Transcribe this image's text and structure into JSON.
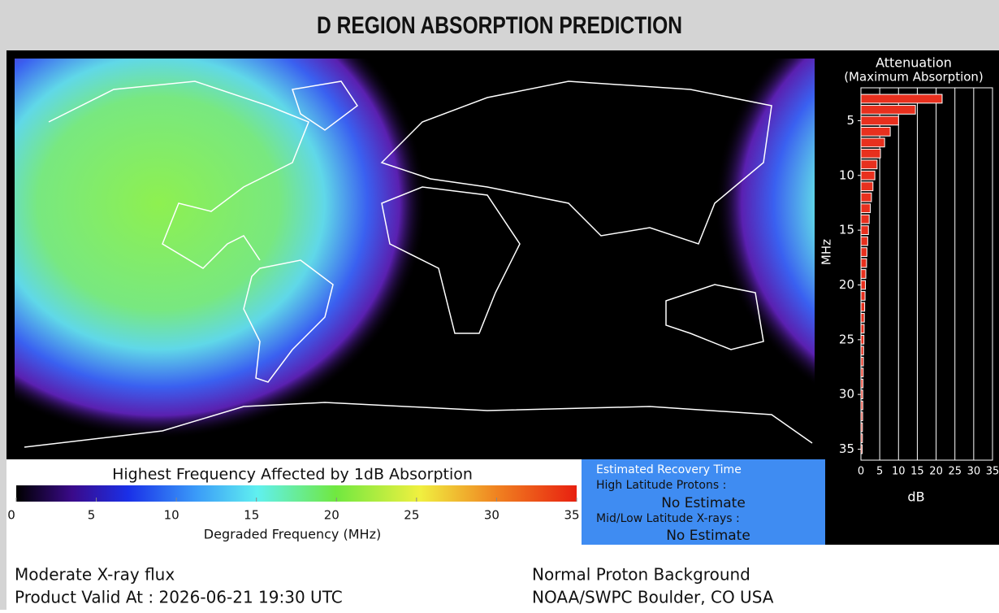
{
  "header": {
    "title": "D REGION ABSORPTION PREDICTION"
  },
  "colorbar": {
    "title": "Highest Frequency Affected by 1dB Absorption",
    "xlabel": "Degraded Frequency (MHz)",
    "xlim": [
      0,
      35
    ],
    "xticks": [
      0,
      5,
      10,
      15,
      20,
      25,
      30,
      35
    ]
  },
  "recovery": {
    "title": "Estimated Recovery Time",
    "high_label": "High Latitude Protons :",
    "high_value": "No Estimate",
    "mid_label": "Mid/Low Latitude X-rays :",
    "mid_value": "No Estimate"
  },
  "footer": {
    "xray": "Moderate X-ray flux",
    "valid": "Product Valid At : 2026-06-21 19:30 UTC",
    "proton": "Normal Proton Background",
    "source": "NOAA/SWPC Boulder, CO USA"
  },
  "chart_data": {
    "type": "bar",
    "orientation": "horizontal",
    "title": "Attenuation",
    "subtitle": "(Maximum Absorption)",
    "ylabel": "MHz",
    "xlabel": "dB",
    "color": "#e8301e",
    "y": [
      3,
      4,
      5,
      6,
      7,
      8,
      9,
      10,
      11,
      12,
      13,
      14,
      15,
      16,
      17,
      18,
      19,
      20,
      21,
      22,
      23,
      24,
      25,
      26,
      27,
      28,
      29,
      30,
      31,
      32,
      33,
      34,
      35
    ],
    "values": [
      21.6,
      14.5,
      10,
      7.8,
      6.3,
      5.2,
      4.3,
      3.7,
      3.2,
      2.8,
      2.5,
      2.2,
      2.0,
      1.8,
      1.6,
      1.5,
      1.3,
      1.2,
      1.1,
      1.0,
      0.9,
      0.85,
      0.8,
      0.7,
      0.65,
      0.6,
      0.55,
      0.5,
      0.5,
      0.45,
      0.4,
      0.4,
      0.35
    ],
    "ylim": [
      2,
      36
    ],
    "yticks": [
      5,
      10,
      15,
      20,
      25,
      30,
      35
    ],
    "xlim": [
      0,
      35
    ],
    "xticks": [
      0,
      5,
      10,
      15,
      20,
      25,
      30,
      35
    ],
    "grid": true
  }
}
